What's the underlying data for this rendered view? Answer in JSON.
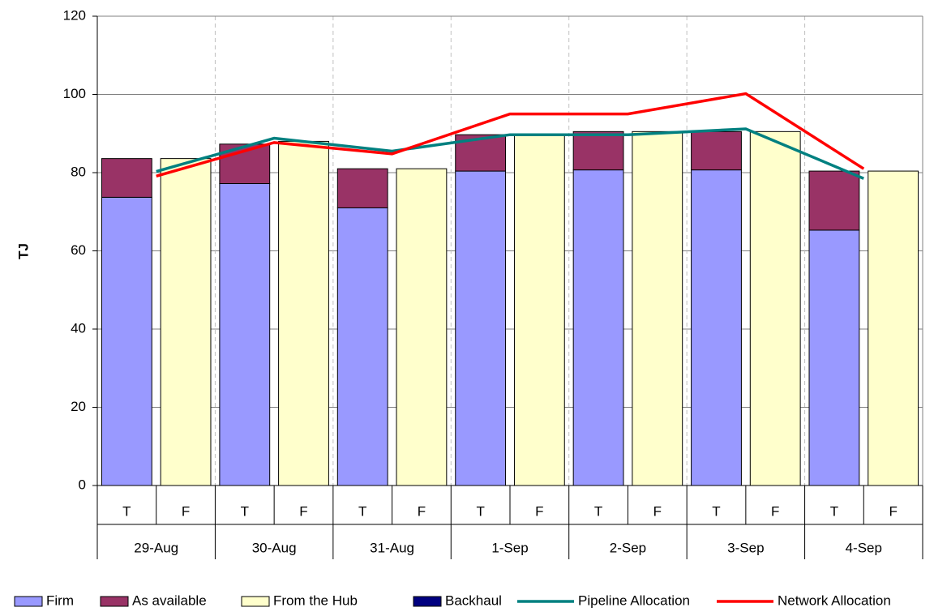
{
  "chart_data": {
    "type": "bar",
    "y_label": "TJ",
    "categories": [
      "T",
      "F",
      "T",
      "F",
      "T",
      "F",
      "T",
      "F",
      "T",
      "F",
      "T",
      "F",
      "T",
      "F"
    ],
    "groups": [
      "29-Aug",
      "30-Aug",
      "31-Aug",
      "1-Sep",
      "2-Sep",
      "3-Sep",
      "4-Sep"
    ],
    "ylim": [
      0,
      120
    ],
    "yticks": [
      0,
      20,
      40,
      60,
      80,
      100,
      120
    ],
    "grid": true,
    "stacked": true,
    "series": [
      {
        "name": "Firm",
        "color": "#9999ff",
        "values": [
          73.7,
          null,
          77.2,
          null,
          71.0,
          null,
          80.4,
          null,
          80.7,
          null,
          80.7,
          null,
          65.3,
          null
        ]
      },
      {
        "name": "As available",
        "color": "#993366",
        "values": [
          9.9,
          null,
          10.1,
          null,
          10.0,
          null,
          9.3,
          null,
          9.8,
          null,
          9.8,
          null,
          15.1,
          null
        ]
      },
      {
        "name": "From the Hub",
        "color": "#ffffcc",
        "values": [
          null,
          83.6,
          null,
          88.0,
          null,
          81.0,
          null,
          89.7,
          null,
          90.5,
          null,
          90.5,
          null,
          80.4
        ]
      },
      {
        "name": "Backhaul",
        "color": "#000080",
        "values": [
          0,
          null,
          0,
          null,
          0,
          null,
          0,
          null,
          0,
          null,
          0,
          null,
          0,
          null
        ]
      }
    ],
    "lines": [
      {
        "name": "Pipeline Allocation",
        "color": "#008080",
        "values": [
          80.3,
          88.8,
          85.5,
          89.7,
          89.7,
          91.2,
          78.5
        ]
      },
      {
        "name": "Network Allocation",
        "color": "#ff0000",
        "values": [
          79.1,
          87.7,
          84.8,
          95.0,
          95.0,
          100.2,
          81.0
        ]
      }
    ]
  }
}
